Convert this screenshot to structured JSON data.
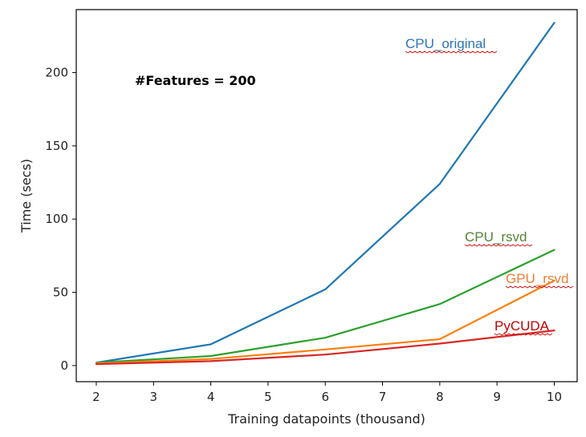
{
  "chart_data": {
    "type": "line",
    "xlabel": "Training datapoints (thousand)",
    "ylabel": "Time (secs)",
    "xlim": [
      1.65,
      10.4
    ],
    "ylim": [
      -11,
      243
    ],
    "xticks": [
      2,
      3,
      4,
      5,
      6,
      7,
      8,
      9,
      10
    ],
    "yticks": [
      0,
      50,
      100,
      150,
      200
    ],
    "grid": false,
    "legend": "none (series names written directly on the plot)",
    "annotation": "#Features = 200",
    "x": [
      2,
      4,
      6,
      8,
      10
    ],
    "series": [
      {
        "name": "CPU_original",
        "color": "#1f77b4",
        "values": [
          2,
          14.5,
          52,
          124,
          234
        ]
      },
      {
        "name": "CPU_rsvd",
        "color": "#2ca02c",
        "values": [
          2,
          6.5,
          19,
          42,
          79
        ]
      },
      {
        "name": "GPU_rsvd",
        "color": "#ff7f0e",
        "values": [
          1.5,
          4.5,
          11,
          18,
          58
        ]
      },
      {
        "name": "PyCUDA",
        "color": "#d62728",
        "values": [
          1,
          3,
          7.5,
          15,
          24
        ]
      }
    ],
    "series_label_colors": {
      "CPU_original": "#2e75b6",
      "CPU_rsvd": "#548235",
      "GPU_rsvd": "#ed7d31",
      "PyCUDA": "#c00000"
    }
  }
}
